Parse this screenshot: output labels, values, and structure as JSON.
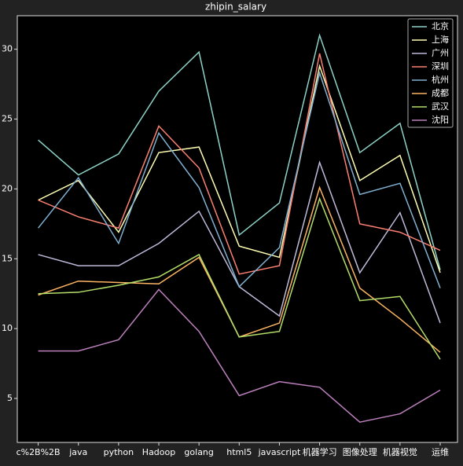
{
  "chart_data": {
    "type": "line",
    "title": "zhipin_salary",
    "categories": [
      "c%2B%2B",
      "java",
      "python",
      "Hadoop",
      "golang",
      "html5",
      "javascript",
      "机器学习",
      "图像处理",
      "机器视觉",
      "运维"
    ],
    "series": [
      {
        "name": "北京",
        "color": "#8dd3c7",
        "values": [
          23.5,
          21.0,
          22.5,
          27.0,
          29.8,
          16.7,
          19.0,
          31.0,
          22.6,
          24.7,
          14.2
        ]
      },
      {
        "name": "上海",
        "color": "#ffffb3",
        "values": [
          19.2,
          20.6,
          16.9,
          22.6,
          23.0,
          15.9,
          15.1,
          28.8,
          20.6,
          22.4,
          14.0
        ]
      },
      {
        "name": "广州",
        "color": "#bebada",
        "values": [
          15.3,
          14.5,
          14.5,
          16.1,
          18.4,
          13.0,
          10.9,
          21.9,
          14.0,
          18.3,
          10.4
        ]
      },
      {
        "name": "深圳",
        "color": "#fb8072",
        "values": [
          19.2,
          18.0,
          17.2,
          24.5,
          21.5,
          13.9,
          14.5,
          29.7,
          17.5,
          16.9,
          15.6
        ]
      },
      {
        "name": "杭州",
        "color": "#80b1d3",
        "values": [
          17.2,
          20.8,
          16.1,
          24.0,
          20.1,
          13.0,
          15.8,
          28.3,
          19.6,
          20.4,
          12.9
        ]
      },
      {
        "name": "成都",
        "color": "#fdb462",
        "values": [
          12.4,
          13.4,
          13.3,
          13.2,
          15.1,
          9.4,
          10.4,
          20.1,
          12.9,
          10.7,
          8.3
        ]
      },
      {
        "name": "武汉",
        "color": "#b3de69",
        "values": [
          12.5,
          12.6,
          13.1,
          13.7,
          15.3,
          9.4,
          9.8,
          19.3,
          12.0,
          12.3,
          7.8
        ]
      },
      {
        "name": "沈阳",
        "color": "#bc80bd",
        "values": [
          8.4,
          8.4,
          9.2,
          12.8,
          9.8,
          5.2,
          6.2,
          5.8,
          3.3,
          3.9,
          5.6
        ]
      }
    ],
    "ylim": [
      1.85,
      32.4
    ],
    "yticks": [
      5,
      10,
      15,
      20,
      25,
      30
    ],
    "legend": "upper right"
  }
}
